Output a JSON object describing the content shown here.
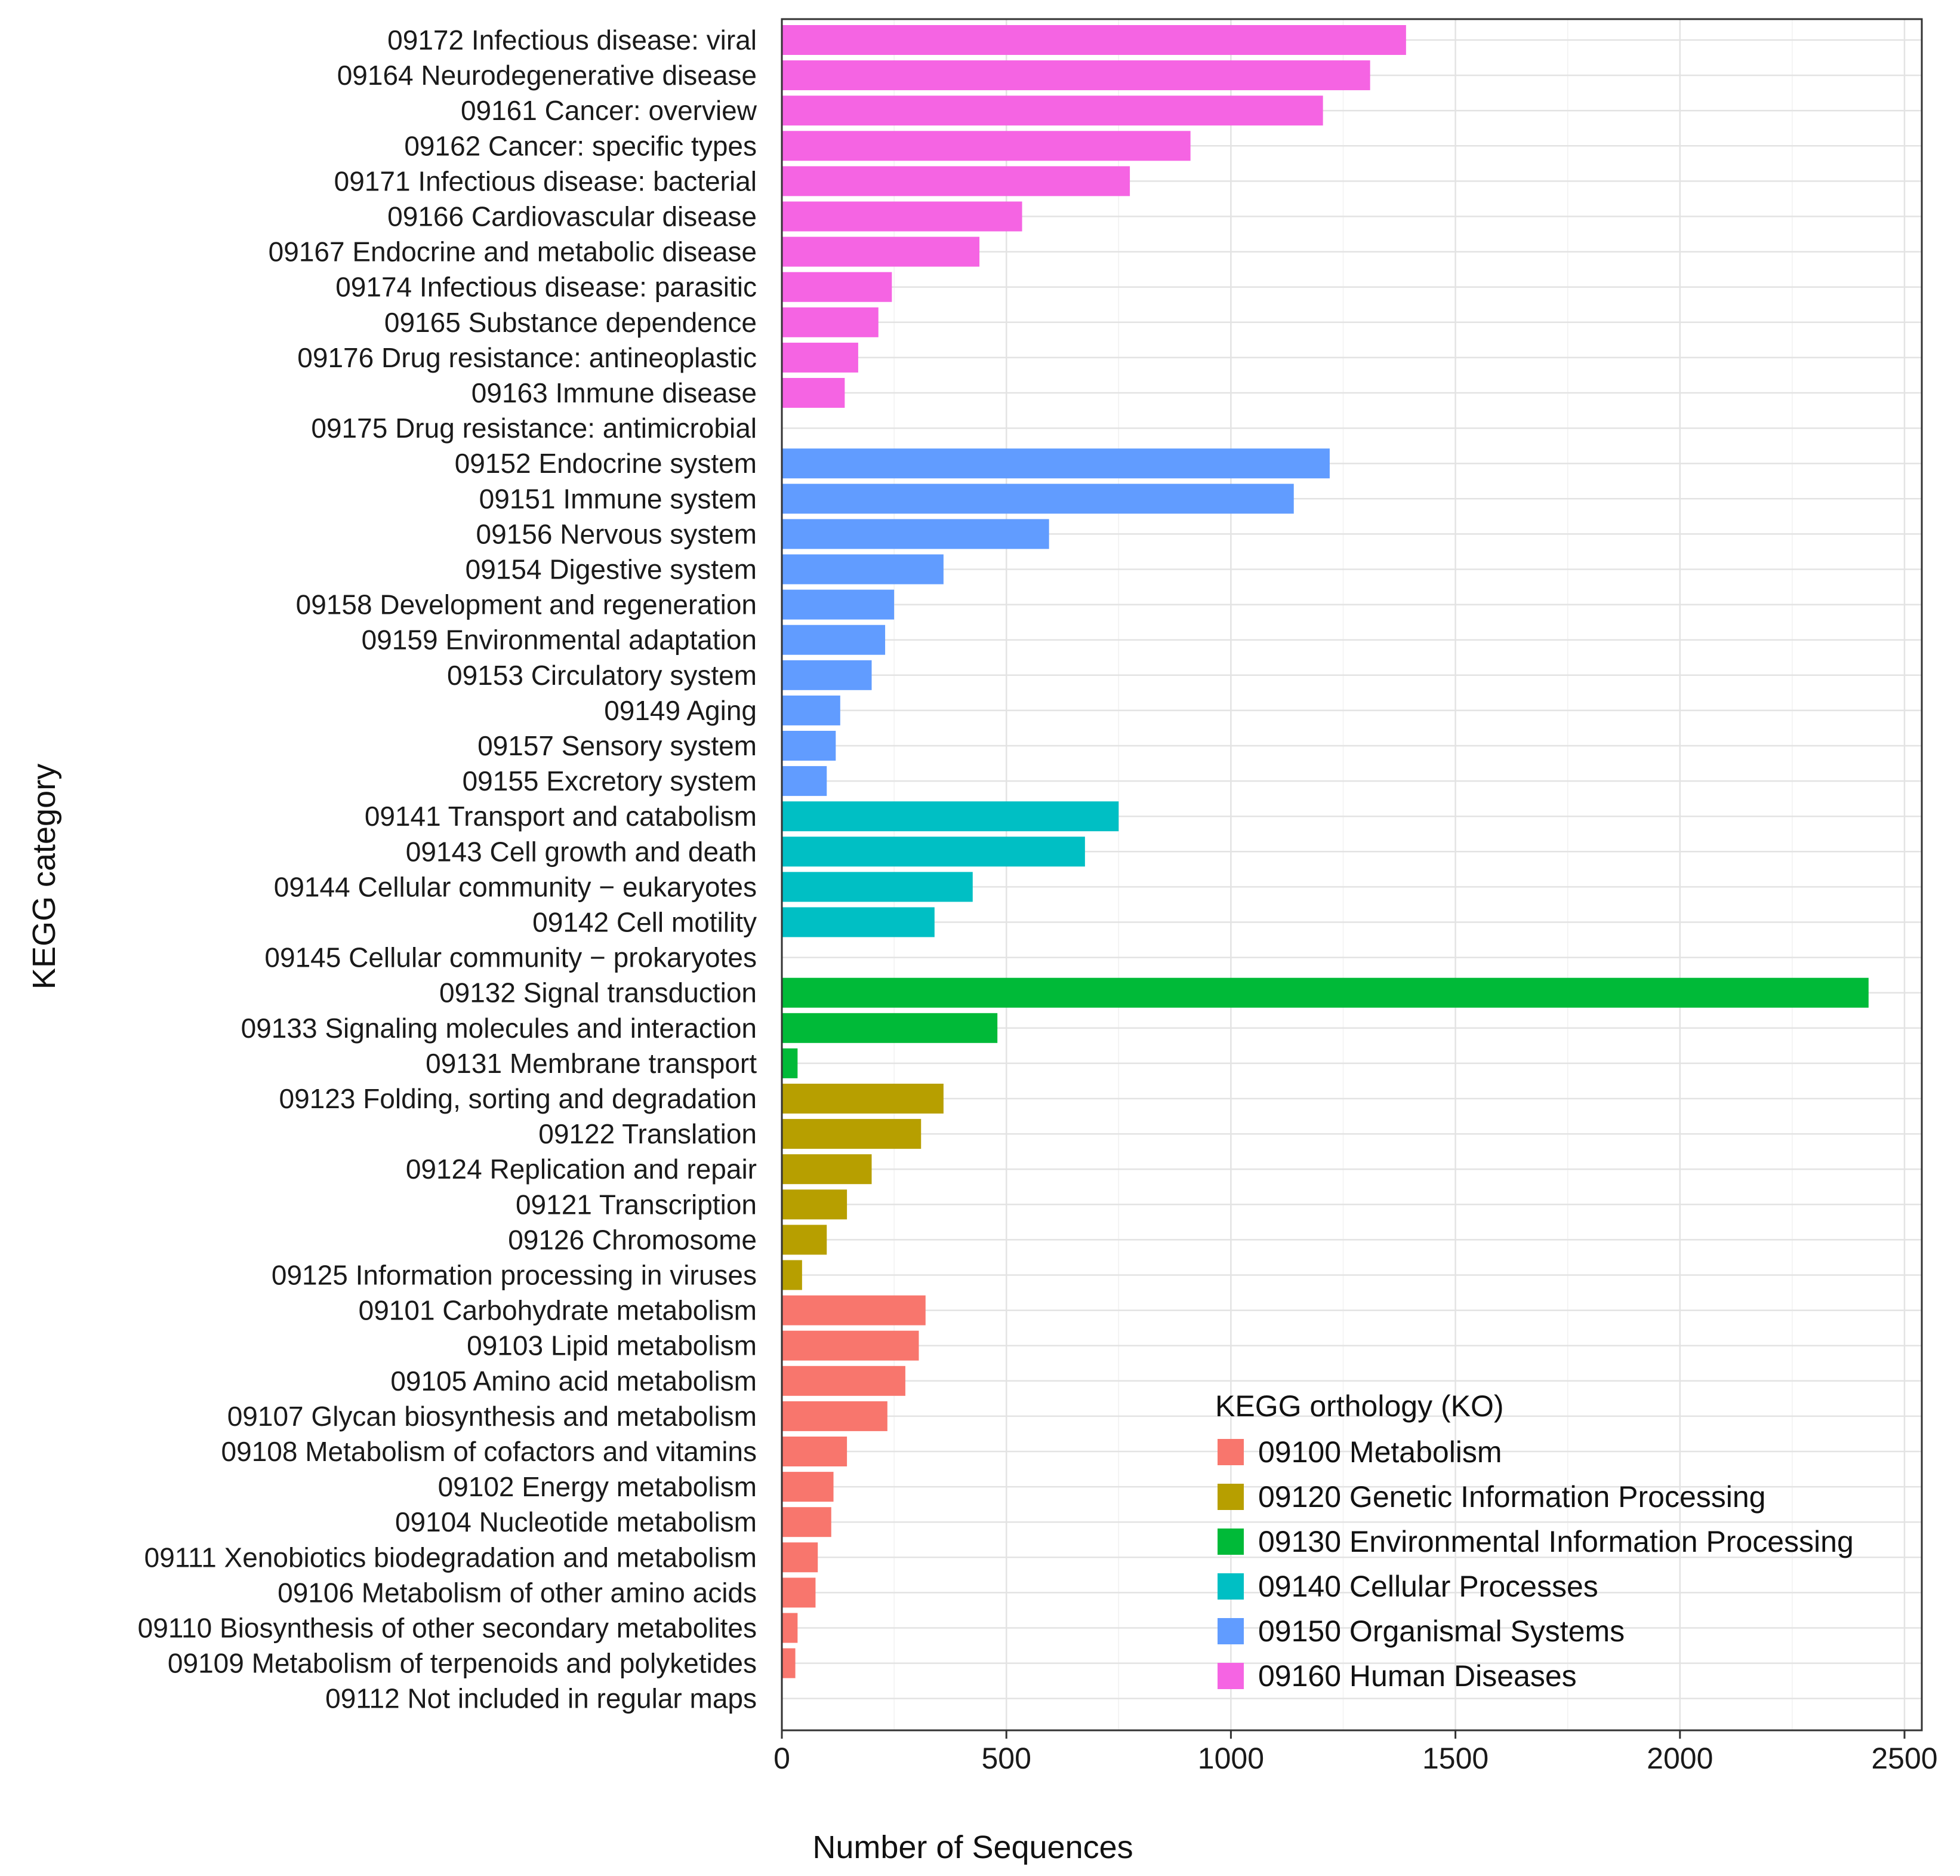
{
  "chart_data": {
    "type": "bar",
    "orientation": "horizontal",
    "xlabel": "Number of Sequences",
    "ylabel": "KEGG category",
    "xlim": [
      0,
      2540
    ],
    "xticks": [
      0,
      500,
      1000,
      1500,
      2000,
      2500
    ],
    "grid": true,
    "legend": {
      "title": "KEGG orthology (KO)",
      "placement": "bottom-right",
      "entries": [
        {
          "key": "09100",
          "name": "09100 Metabolism",
          "color": "#F8766D"
        },
        {
          "key": "09120",
          "name": "09120 Genetic Information Processing",
          "color": "#B79F00"
        },
        {
          "key": "09130",
          "name": "09130 Environmental Information Processing",
          "color": "#00BA38"
        },
        {
          "key": "09140",
          "name": "09140 Cellular Processes",
          "color": "#00BFC4"
        },
        {
          "key": "09150",
          "name": "09150 Organismal Systems",
          "color": "#619CFF"
        },
        {
          "key": "09160",
          "name": "09160 Human Diseases",
          "color": "#F564E3"
        }
      ]
    },
    "bars": [
      {
        "label": "09172 Infectious disease: viral",
        "value": 1390,
        "group": "09160"
      },
      {
        "label": "09164 Neurodegenerative disease",
        "value": 1310,
        "group": "09160"
      },
      {
        "label": "09161 Cancer: overview",
        "value": 1205,
        "group": "09160"
      },
      {
        "label": "09162 Cancer: specific types",
        "value": 910,
        "group": "09160"
      },
      {
        "label": "09171 Infectious disease: bacterial",
        "value": 775,
        "group": "09160"
      },
      {
        "label": "09166 Cardiovascular disease",
        "value": 535,
        "group": "09160"
      },
      {
        "label": "09167 Endocrine and metabolic disease",
        "value": 440,
        "group": "09160"
      },
      {
        "label": "09174 Infectious disease: parasitic",
        "value": 245,
        "group": "09160"
      },
      {
        "label": "09165 Substance dependence",
        "value": 215,
        "group": "09160"
      },
      {
        "label": "09176 Drug resistance: antineoplastic",
        "value": 170,
        "group": "09160"
      },
      {
        "label": "09163 Immune disease",
        "value": 140,
        "group": "09160"
      },
      {
        "label": "09175 Drug resistance: antimicrobial",
        "value": 0,
        "group": "09160"
      },
      {
        "label": "09152 Endocrine system",
        "value": 1220,
        "group": "09150"
      },
      {
        "label": "09151 Immune system",
        "value": 1140,
        "group": "09150"
      },
      {
        "label": "09156 Nervous system",
        "value": 595,
        "group": "09150"
      },
      {
        "label": "09154 Digestive system",
        "value": 360,
        "group": "09150"
      },
      {
        "label": "09158 Development and regeneration",
        "value": 250,
        "group": "09150"
      },
      {
        "label": "09159 Environmental adaptation",
        "value": 230,
        "group": "09150"
      },
      {
        "label": "09153 Circulatory system",
        "value": 200,
        "group": "09150"
      },
      {
        "label": "09149 Aging",
        "value": 130,
        "group": "09150"
      },
      {
        "label": "09157 Sensory system",
        "value": 120,
        "group": "09150"
      },
      {
        "label": "09155 Excretory system",
        "value": 100,
        "group": "09150"
      },
      {
        "label": "09141 Transport and catabolism",
        "value": 750,
        "group": "09140"
      },
      {
        "label": "09143 Cell growth and death",
        "value": 675,
        "group": "09140"
      },
      {
        "label": "09144 Cellular community − eukaryotes",
        "value": 425,
        "group": "09140"
      },
      {
        "label": "09142 Cell motility",
        "value": 340,
        "group": "09140"
      },
      {
        "label": "09145 Cellular community − prokaryotes",
        "value": 0,
        "group": "09140"
      },
      {
        "label": "09132 Signal transduction",
        "value": 2420,
        "group": "09130"
      },
      {
        "label": "09133 Signaling molecules and interaction",
        "value": 480,
        "group": "09130"
      },
      {
        "label": "09131 Membrane transport",
        "value": 35,
        "group": "09130"
      },
      {
        "label": "09123 Folding, sorting and degradation",
        "value": 360,
        "group": "09120"
      },
      {
        "label": "09122 Translation",
        "value": 310,
        "group": "09120"
      },
      {
        "label": "09124 Replication and repair",
        "value": 200,
        "group": "09120"
      },
      {
        "label": "09121 Transcription",
        "value": 145,
        "group": "09120"
      },
      {
        "label": "09126 Chromosome",
        "value": 100,
        "group": "09120"
      },
      {
        "label": "09125 Information processing in viruses",
        "value": 45,
        "group": "09120"
      },
      {
        "label": "09101 Carbohydrate metabolism",
        "value": 320,
        "group": "09100"
      },
      {
        "label": "09103 Lipid metabolism",
        "value": 305,
        "group": "09100"
      },
      {
        "label": "09105 Amino acid metabolism",
        "value": 275,
        "group": "09100"
      },
      {
        "label": "09107 Glycan biosynthesis and metabolism",
        "value": 235,
        "group": "09100"
      },
      {
        "label": "09108 Metabolism of cofactors and vitamins",
        "value": 145,
        "group": "09100"
      },
      {
        "label": "09102 Energy metabolism",
        "value": 115,
        "group": "09100"
      },
      {
        "label": "09104 Nucleotide metabolism",
        "value": 110,
        "group": "09100"
      },
      {
        "label": "09111 Xenobiotics biodegradation and metabolism",
        "value": 80,
        "group": "09100"
      },
      {
        "label": "09106 Metabolism of other amino acids",
        "value": 75,
        "group": "09100"
      },
      {
        "label": "09110 Biosynthesis of other secondary metabolites",
        "value": 35,
        "group": "09100"
      },
      {
        "label": "09109 Metabolism of terpenoids and polyketides",
        "value": 30,
        "group": "09100"
      },
      {
        "label": "09112 Not included in regular maps",
        "value": 0,
        "group": "09100"
      }
    ]
  }
}
